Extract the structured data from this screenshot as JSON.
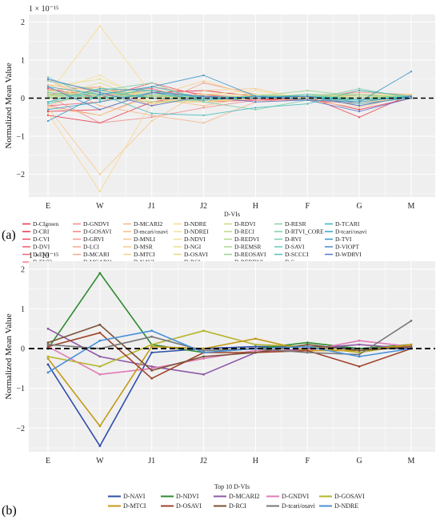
{
  "chart_data": [
    {
      "panel_label": "(a)",
      "type": "line",
      "scale_note": "1 × 10⁻¹⁵",
      "ylabel": "Normalized Mean Value",
      "xlabel": "",
      "categories": [
        "E",
        "W",
        "J1",
        "J2",
        "H",
        "F",
        "G",
        "M"
      ],
      "ylim": [
        -2.6,
        2.2
      ],
      "yticks": [
        2,
        1,
        0,
        -1,
        -2
      ],
      "grid": true,
      "zero_line": "dashed",
      "legend_title": "D-VIs",
      "legend_position": "bottom",
      "series": [
        {
          "name": "D-CIgreen",
          "color": "#e8314b",
          "values": [
            -0.35,
            -0.3,
            0.15,
            0.2,
            0.05,
            -0.05,
            -0.1,
            0.05
          ]
        },
        {
          "name": "D-CRI",
          "color": "#e8314b",
          "values": [
            -0.45,
            -0.65,
            -0.1,
            0.1,
            -0.05,
            0.0,
            -0.3,
            0.0
          ]
        },
        {
          "name": "D-CVI",
          "color": "#ea4a5a",
          "values": [
            0.25,
            0.0,
            0.4,
            0.05,
            0.0,
            0.05,
            -0.5,
            0.1
          ]
        },
        {
          "name": "D-DVI",
          "color": "#ee5a6a",
          "values": [
            0.1,
            0.2,
            0.25,
            -0.1,
            -0.05,
            0.05,
            -0.2,
            0.05
          ]
        },
        {
          "name": "D-EVI",
          "color": "#ef6a78",
          "values": [
            -0.2,
            -0.1,
            0.3,
            0.1,
            0.0,
            -0.05,
            0.1,
            0.0
          ]
        },
        {
          "name": "D-EVI2",
          "color": "#f07c88",
          "values": [
            0.15,
            0.05,
            0.2,
            0.05,
            0.05,
            0.0,
            -0.1,
            0.05
          ]
        },
        {
          "name": "D-GNDVI",
          "color": "#f28a8a",
          "values": [
            0.05,
            -0.65,
            -0.5,
            -0.25,
            -0.05,
            -0.05,
            0.2,
            0.05
          ]
        },
        {
          "name": "D-GOSAVI",
          "color": "#f08080",
          "values": [
            -0.2,
            -0.45,
            0.1,
            -0.05,
            -0.05,
            -0.05,
            -0.15,
            0.05
          ]
        },
        {
          "name": "D-GRVI",
          "color": "#f49b8a",
          "values": [
            0.2,
            0.3,
            -0.2,
            0.4,
            0.1,
            0.05,
            0.15,
            0.1
          ]
        },
        {
          "name": "D-LCI",
          "color": "#f5a58f",
          "values": [
            0.3,
            0.1,
            0.05,
            -0.05,
            0.0,
            0.0,
            -0.05,
            0.0
          ]
        },
        {
          "name": "D-MCARI",
          "color": "#f3a98f",
          "values": [
            0.1,
            0.1,
            0.1,
            0.0,
            0.0,
            0.0,
            0.0,
            0.0
          ]
        },
        {
          "name": "D-MCARI1",
          "color": "#f6b08a",
          "values": [
            0.35,
            0.2,
            0.0,
            -0.1,
            0.05,
            0.05,
            -0.05,
            0.05
          ]
        },
        {
          "name": "D-MCARI2",
          "color": "#f7b58a",
          "values": [
            0.5,
            -0.2,
            -0.45,
            -0.65,
            -0.1,
            0.0,
            0.1,
            0.0
          ]
        },
        {
          "name": "D-mcari/osavi",
          "color": "#f7bd8a",
          "values": [
            -0.2,
            0.25,
            0.0,
            -0.2,
            0.05,
            0.0,
            0.0,
            0.05
          ]
        },
        {
          "name": "D-MNLI",
          "color": "#f8c48a",
          "values": [
            0.05,
            0.3,
            -0.15,
            0.0,
            0.05,
            0.05,
            -0.05,
            0.05
          ]
        },
        {
          "name": "D-MSR",
          "color": "#f9c98c",
          "values": [
            -0.25,
            -2.0,
            -0.6,
            0.2,
            0.25,
            -0.05,
            -0.25,
            0.1
          ]
        },
        {
          "name": "D-MTCI",
          "color": "#fad08d",
          "values": [
            -0.25,
            -0.45,
            0.05,
            0.45,
            0.05,
            0.05,
            0.05,
            0.1
          ]
        },
        {
          "name": "D-NAVI",
          "color": "#fad58e",
          "values": [
            -0.4,
            -2.45,
            -0.1,
            0.0,
            0.05,
            0.05,
            0.0,
            0.0
          ]
        },
        {
          "name": "D-NDRE",
          "color": "#fbdb90",
          "values": [
            0.1,
            1.9,
            0.1,
            -0.1,
            0.0,
            0.05,
            0.0,
            0.1
          ]
        },
        {
          "name": "D-NDREI",
          "color": "#fbe094",
          "values": [
            0.15,
            0.6,
            -0.15,
            0.1,
            0.2,
            0.0,
            -0.1,
            0.0
          ]
        },
        {
          "name": "D-NDVI",
          "color": "#f5e290",
          "values": [
            0.0,
            0.0,
            0.1,
            0.0,
            0.05,
            0.1,
            0.0,
            0.0
          ]
        },
        {
          "name": "D-NGI",
          "color": "#eadf8c",
          "values": [
            0.3,
            0.5,
            0.0,
            0.1,
            0.1,
            0.05,
            0.1,
            0.1
          ]
        },
        {
          "name": "D-OSAVI",
          "color": "#e2dc88",
          "values": [
            0.05,
            0.4,
            -0.1,
            -0.1,
            0.1,
            0.05,
            0.1,
            0.05
          ]
        },
        {
          "name": "D-RCI",
          "color": "#d6db84",
          "values": [
            0.0,
            0.25,
            0.05,
            0.05,
            0.05,
            0.05,
            0.05,
            0.05
          ]
        },
        {
          "name": "D-RDVI",
          "color": "#c8d983",
          "values": [
            0.1,
            0.1,
            0.15,
            -0.05,
            0.0,
            0.1,
            0.0,
            0.05
          ]
        },
        {
          "name": "D-RECI",
          "color": "#bad884",
          "values": [
            0.2,
            0.05,
            0.05,
            0.05,
            0.0,
            0.0,
            0.0,
            0.0
          ]
        },
        {
          "name": "D-REDVI",
          "color": "#b4d68a",
          "values": [
            0.0,
            0.15,
            0.0,
            0.0,
            0.05,
            0.05,
            0.0,
            0.05
          ]
        },
        {
          "name": "D-REMSR",
          "color": "#a8d58e",
          "values": [
            0.1,
            0.0,
            -0.1,
            -0.05,
            0.0,
            0.05,
            -0.05,
            0.0
          ]
        },
        {
          "name": "D-REOSAVI",
          "color": "#9cd494",
          "values": [
            -0.1,
            0.05,
            0.05,
            0.0,
            0.05,
            0.2,
            0.05,
            0.05
          ]
        },
        {
          "name": "D-RERDVI",
          "color": "#8fd39b",
          "values": [
            0.05,
            0.1,
            0.2,
            0.0,
            0.0,
            0.1,
            0.1,
            0.0
          ]
        },
        {
          "name": "D-RESR",
          "color": "#84d2a3",
          "values": [
            0.0,
            0.0,
            0.05,
            0.05,
            0.0,
            0.05,
            0.0,
            0.05
          ]
        },
        {
          "name": "D-RTVI_CORE",
          "color": "#7ad1ac",
          "values": [
            0.45,
            0.2,
            0.4,
            -0.1,
            -0.3,
            -0.05,
            0.25,
            0.0
          ]
        },
        {
          "name": "D-RVI",
          "color": "#6fcfb4",
          "values": [
            0.15,
            0.0,
            0.1,
            0.05,
            0.0,
            0.0,
            -0.05,
            0.0
          ]
        },
        {
          "name": "D-SAVI",
          "color": "#5dccbb",
          "values": [
            0.55,
            -0.05,
            0.3,
            0.0,
            0.0,
            0.1,
            -0.05,
            0.05
          ]
        },
        {
          "name": "D-SCCCI",
          "color": "#4fc4bd",
          "values": [
            -0.15,
            0.2,
            0.0,
            -0.05,
            0.05,
            0.05,
            -0.15,
            0.0
          ]
        },
        {
          "name": "D-Sr",
          "color": "#44bcbf",
          "values": [
            0.3,
            0.1,
            -0.4,
            -0.45,
            -0.25,
            -0.15,
            0.2,
            0.05
          ]
        },
        {
          "name": "D-TCARI",
          "color": "#3ab2c2",
          "values": [
            -0.1,
            0.25,
            0.2,
            0.0,
            0.0,
            0.05,
            -0.05,
            0.05
          ]
        },
        {
          "name": "D-tcari/osavi",
          "color": "#34a4c5",
          "values": [
            -0.3,
            -0.1,
            0.15,
            -0.05,
            0.05,
            0.05,
            -0.1,
            0.05
          ]
        },
        {
          "name": "D-TVI",
          "color": "#3797c9",
          "values": [
            -0.6,
            0.1,
            0.3,
            0.6,
            0.05,
            -0.05,
            -0.1,
            0.7
          ]
        },
        {
          "name": "D-VIOPT",
          "color": "#4a86cd",
          "values": [
            0.3,
            -0.3,
            0.15,
            0.05,
            0.0,
            0.05,
            -0.2,
            0.05
          ]
        },
        {
          "name": "D-WDRVI",
          "color": "#5b76cf",
          "values": [
            0.5,
            0.15,
            -0.2,
            0.05,
            -0.1,
            -0.05,
            -0.35,
            0.0
          ]
        }
      ]
    },
    {
      "panel_label": "(b)",
      "type": "line",
      "scale_note": "1 × 10⁻¹⁵",
      "ylabel": "Normalized Mean Value",
      "xlabel": "",
      "categories": [
        "E",
        "W",
        "J1",
        "J2",
        "H",
        "F",
        "G",
        "M"
      ],
      "ylim": [
        -2.6,
        2.2
      ],
      "yticks": [
        2,
        1,
        0,
        -1,
        -2
      ],
      "grid": true,
      "zero_line": "dashed",
      "legend_title": "Top 10 D-VIs",
      "legend_position": "bottom",
      "series": [
        {
          "name": "D-NAVI",
          "color": "#2f4fa8",
          "values": [
            -0.4,
            -2.45,
            -0.1,
            0.0,
            0.05,
            0.05,
            0.0,
            0.0
          ]
        },
        {
          "name": "D-NDVI",
          "color": "#2f8a2f",
          "values": [
            0.0,
            1.9,
            0.1,
            -0.1,
            0.0,
            0.15,
            0.0,
            0.1
          ]
        },
        {
          "name": "D-MCARI2",
          "color": "#8e5aa8",
          "values": [
            0.5,
            -0.2,
            -0.45,
            -0.65,
            -0.1,
            0.0,
            0.1,
            0.0
          ]
        },
        {
          "name": "D-GNDVI",
          "color": "#e07ab5",
          "values": [
            0.05,
            -0.65,
            -0.5,
            -0.25,
            -0.05,
            -0.05,
            0.2,
            0.05
          ]
        },
        {
          "name": "D-GOSAVI",
          "color": "#b5b52a",
          "values": [
            -0.2,
            -0.45,
            0.1,
            0.45,
            0.1,
            0.05,
            -0.1,
            0.1
          ]
        },
        {
          "name": "D-MTCI",
          "color": "#c49a1a",
          "values": [
            -0.25,
            -1.95,
            0.05,
            0.0,
            0.25,
            -0.05,
            -0.05,
            0.1
          ]
        },
        {
          "name": "D-OSAVI",
          "color": "#a0432a",
          "values": [
            0.05,
            0.4,
            -0.75,
            -0.1,
            -0.1,
            -0.05,
            -0.45,
            0.0
          ]
        },
        {
          "name": "D-RCI",
          "color": "#7a5236",
          "values": [
            0.15,
            0.6,
            -0.55,
            -0.2,
            -0.1,
            0.1,
            -0.05,
            0.05
          ]
        },
        {
          "name": "D-tcari/osavi",
          "color": "#777777",
          "values": [
            0.1,
            0.0,
            0.3,
            -0.05,
            0.0,
            -0.1,
            -0.15,
            0.7
          ]
        },
        {
          "name": "D-NDRE",
          "color": "#4a90d9",
          "values": [
            -0.6,
            0.2,
            0.45,
            -0.1,
            0.0,
            0.05,
            -0.2,
            0.0
          ]
        }
      ]
    }
  ]
}
